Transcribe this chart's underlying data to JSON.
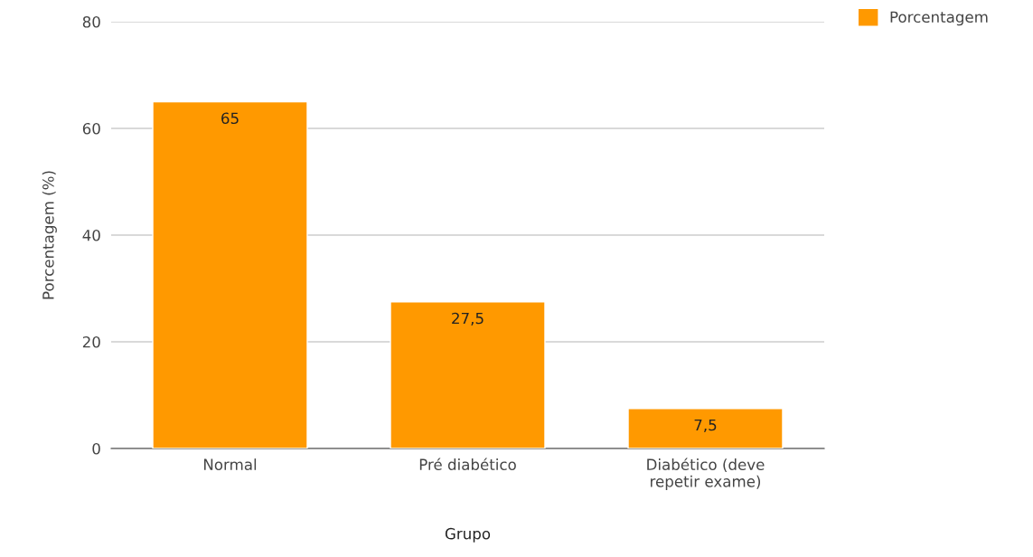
{
  "chart_data": {
    "type": "bar",
    "xlabel": "Grupo",
    "ylabel": "Porcentagem (%)",
    "categories": [
      "Normal",
      "Pré diabético",
      "Diabético (deve\nrepetir exame)"
    ],
    "series": [
      {
        "name": "Porcentagem",
        "color": "#ff9900",
        "values": [
          65,
          27.5,
          7.5
        ],
        "value_labels": [
          "65",
          "27,5",
          "7,5"
        ]
      }
    ],
    "ylim": [
      0,
      80
    ],
    "yticks": [
      0,
      20,
      40,
      60,
      80
    ],
    "grid": "y",
    "legend": "top right"
  }
}
